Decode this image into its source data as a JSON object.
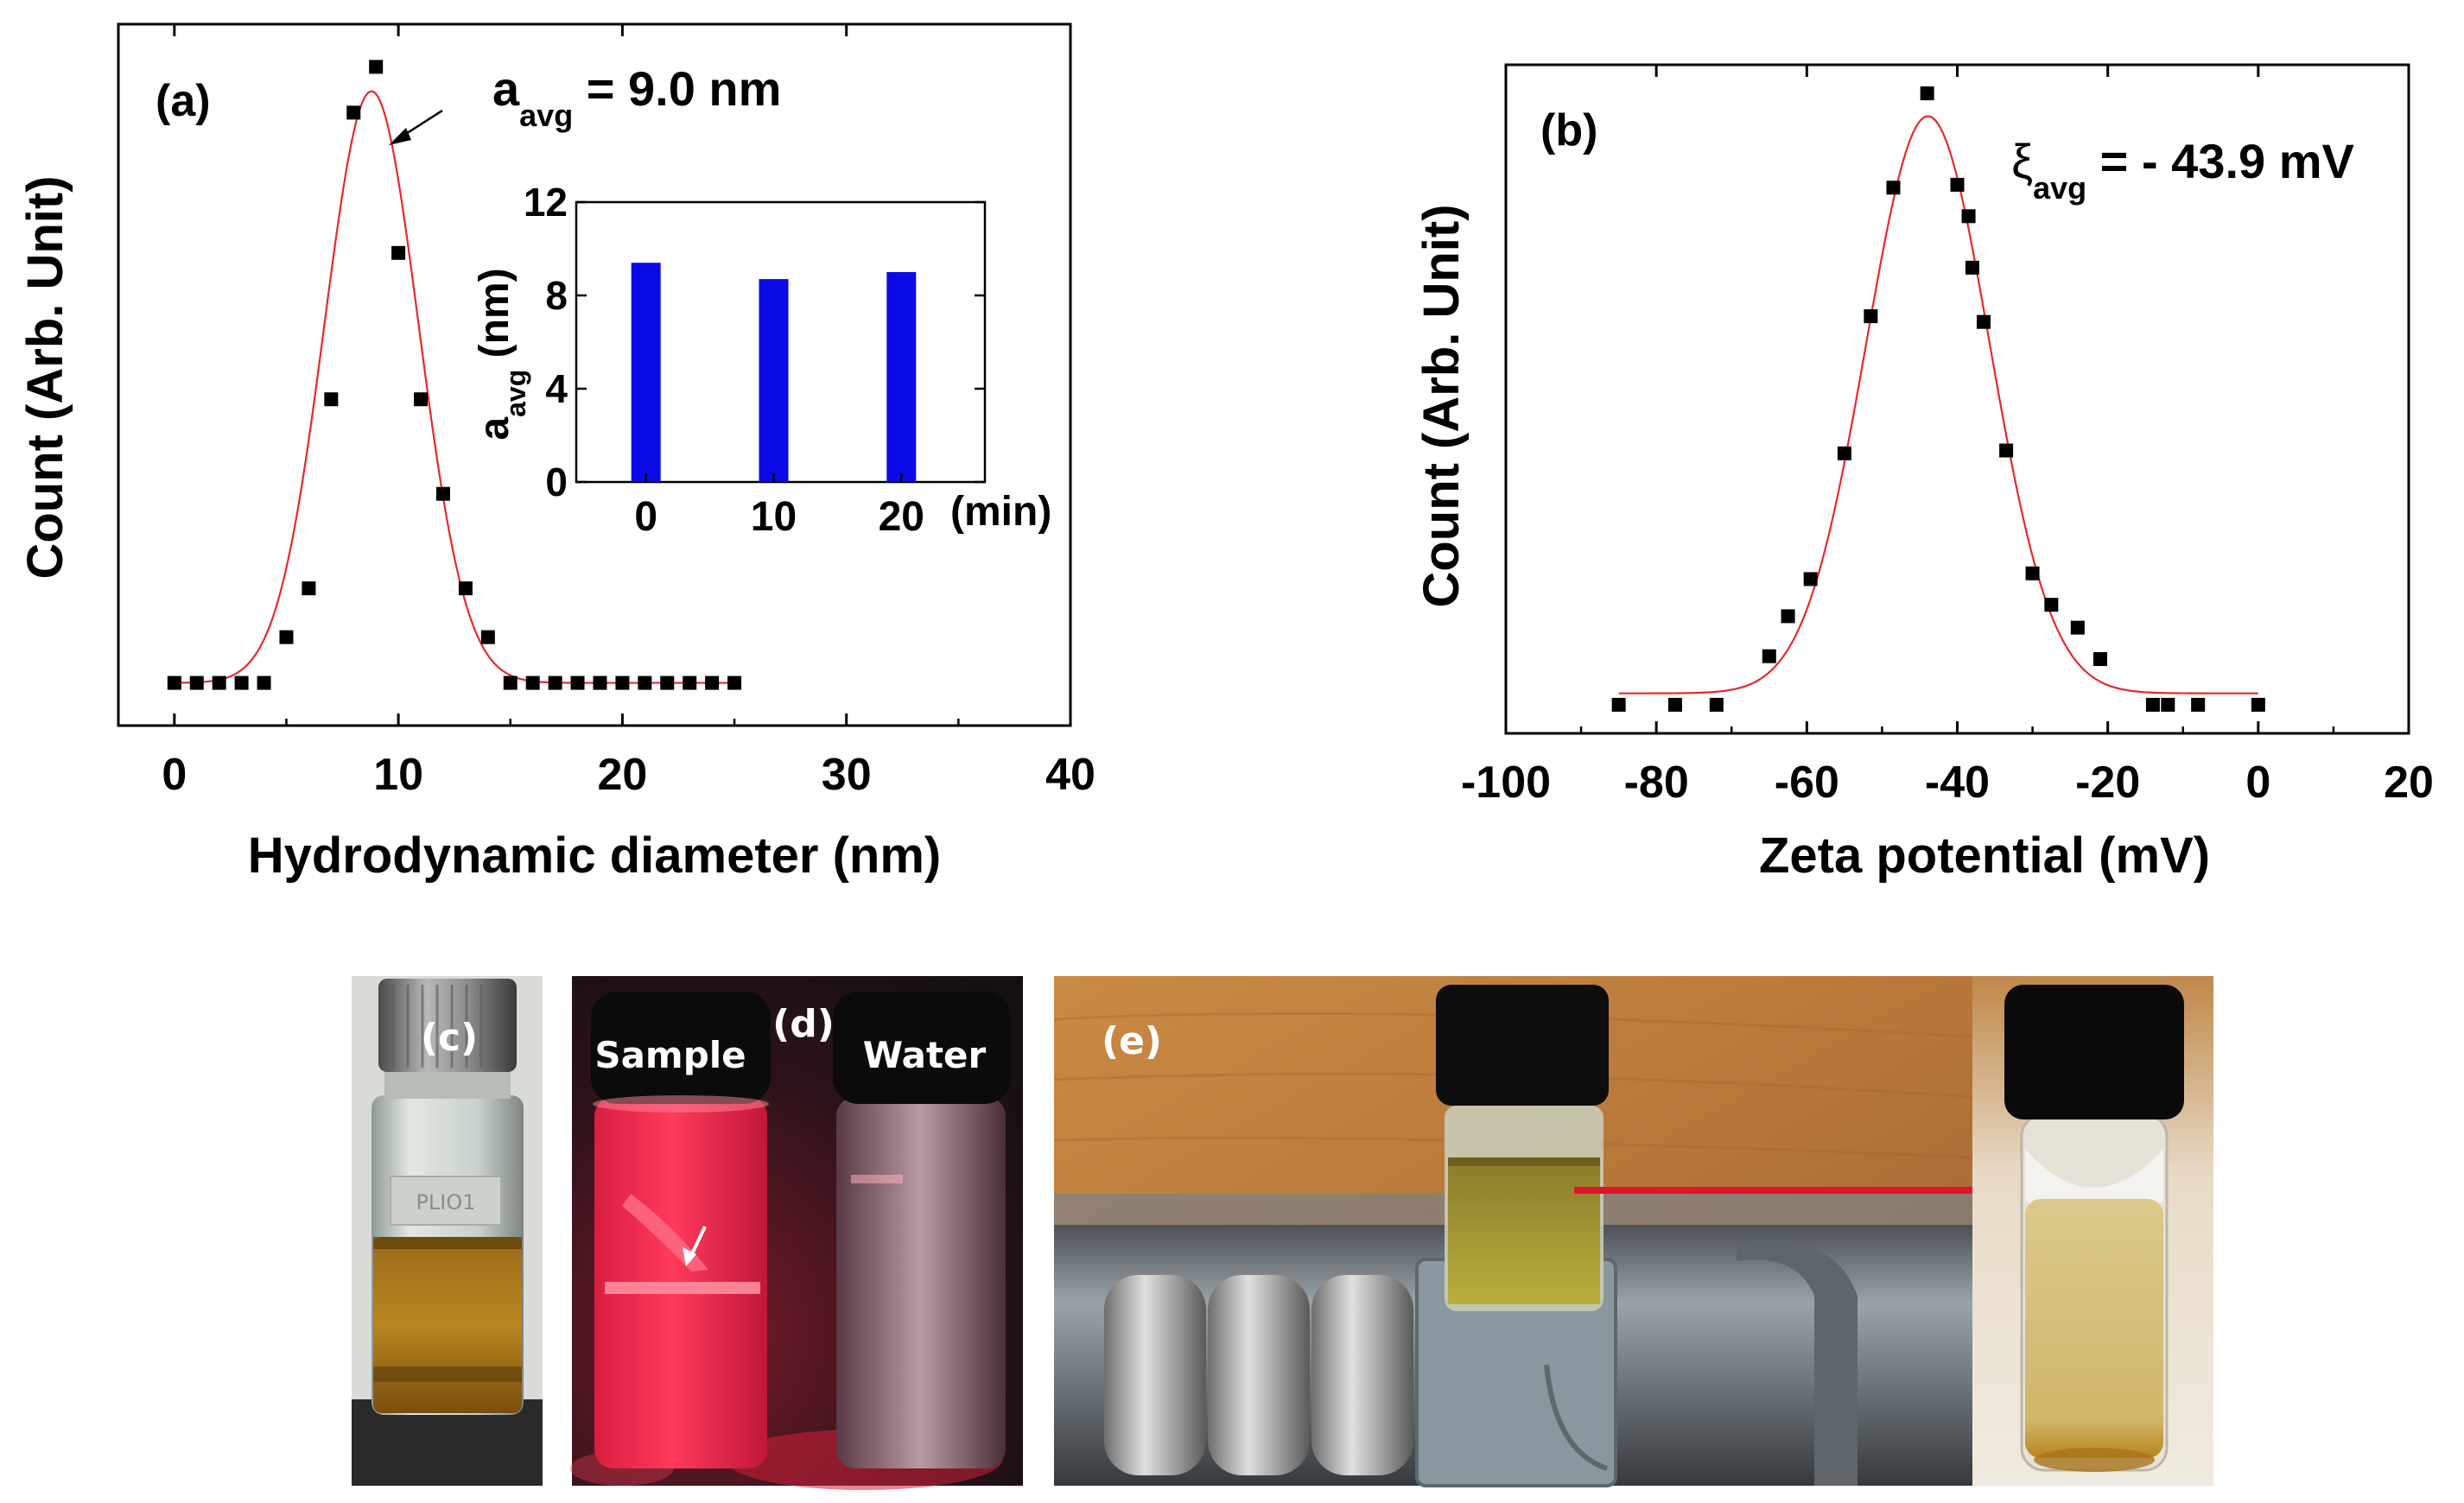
{
  "chart_data": [
    {
      "panel": "(a)",
      "type": "scatter",
      "title": "",
      "xlabel": "Hydrodynamic diameter (nm)",
      "ylabel": "Count (Arb. Unit)",
      "xlim": [
        -2.5,
        40
      ],
      "ylim": [
        -0.07,
        1.08
      ],
      "xticks": [
        0,
        10,
        20,
        30,
        40
      ],
      "xtick_labels": [
        "0",
        "10",
        "20",
        "30",
        "40"
      ],
      "annotation": {
        "prefix": "a",
        "subscript": "avg",
        "text": " = 9.0 nm"
      },
      "series": [
        {
          "name": "measured",
          "marker": "square",
          "x": [
            0,
            1,
            2,
            3,
            4,
            5,
            6,
            7,
            8,
            9,
            10,
            11,
            12,
            13,
            14,
            15,
            16,
            17,
            18,
            19,
            20,
            21,
            22,
            23,
            24,
            25
          ],
          "y": [
            0,
            0,
            0,
            0,
            0,
            0.075,
            0.155,
            0.465,
            0.935,
            1.01,
            0.705,
            0.465,
            0.31,
            0.155,
            0.075,
            0,
            0,
            0,
            0,
            0,
            0,
            0,
            0,
            0,
            0,
            0
          ]
        },
        {
          "name": "gaussian fit",
          "type": "line",
          "color": "#e8282e",
          "center": 8.8,
          "sigma": 2.1,
          "amplitude": 0.97,
          "baseline": 0,
          "x_range": [
            0,
            25
          ]
        }
      ],
      "inset": {
        "type": "bar",
        "categories": [
          "0",
          "10",
          "20"
        ],
        "values": [
          9.4,
          8.7,
          9.0
        ],
        "color": "#0a0ae6",
        "ylim": [
          0,
          12
        ],
        "yticks": [
          0,
          4,
          8,
          12
        ],
        "ytick_labels": [
          "0",
          "4",
          "8",
          "12"
        ],
        "ylabel": {
          "prefix": "a",
          "subscript": "avg",
          "suffix": " (nm)"
        },
        "xunit": "(min)"
      }
    },
    {
      "panel": "(b)",
      "type": "scatter",
      "title": "",
      "xlabel": "Zeta potential (mV)",
      "ylabel": "Count (Arb. Unit)",
      "xlim": [
        -100,
        20
      ],
      "ylim": [
        -0.05,
        1.12
      ],
      "xticks": [
        -100,
        -80,
        -60,
        -40,
        -20,
        0,
        20
      ],
      "xtick_labels": [
        "-100",
        "-80",
        "-60",
        "-40",
        "-20",
        "0",
        "20"
      ],
      "annotation": {
        "prefix": "ξ",
        "subscript": "avg",
        "text": " = - 43.9 mV"
      },
      "series": [
        {
          "name": "measured",
          "marker": "square",
          "x": [
            -85,
            -77.5,
            -72,
            -65,
            -62.5,
            -59.5,
            -55,
            -51.5,
            -48.5,
            -44,
            -40,
            -38.5,
            -38,
            -36.5,
            -33.5,
            -30,
            -27.5,
            -24,
            -21,
            -14,
            -12,
            -8,
            0
          ],
          "y": [
            0,
            0,
            0,
            0.085,
            0.155,
            0.22,
            0.44,
            0.68,
            0.905,
            1.07,
            0.91,
            0.855,
            0.765,
            0.67,
            0.445,
            0.23,
            0.175,
            0.135,
            0.08,
            0,
            0,
            0,
            0
          ]
        },
        {
          "name": "gaussian fit",
          "type": "line",
          "color": "#e8282e",
          "center": -43.9,
          "sigma": 8.2,
          "amplitude": 1.01,
          "baseline": 0.02,
          "x_range": [
            -85,
            0
          ]
        }
      ]
    }
  ],
  "photos": {
    "c": {
      "label": "(c)"
    },
    "d": {
      "label": "(d)",
      "left_vial": "Sample",
      "right_vial": "Water"
    },
    "e": {
      "label": "(e)"
    }
  }
}
